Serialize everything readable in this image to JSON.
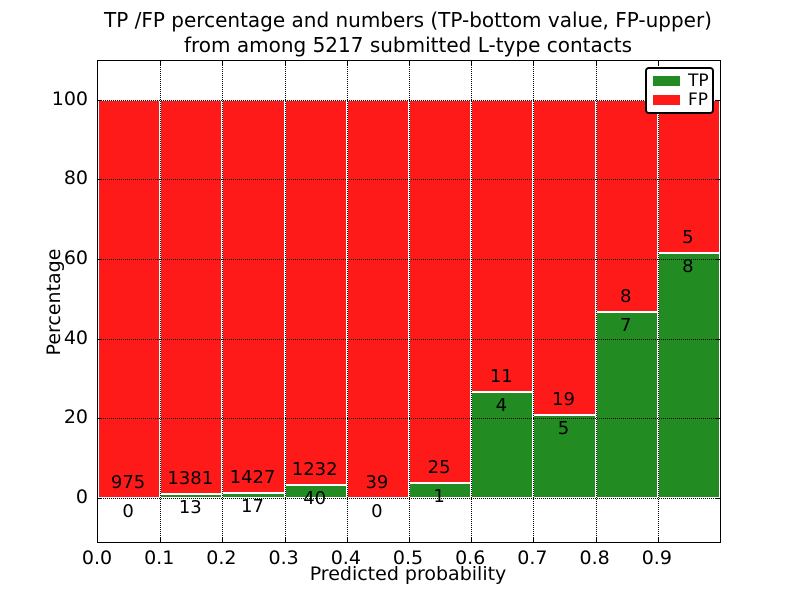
{
  "figure": {
    "title_line1": "TP /FP percentage and numbers (TP-bottom value, FP-upper)",
    "title_line2": "from among 5217 submitted L-type contacts",
    "xlabel": "Predicted probability",
    "ylabel": "Percentage"
  },
  "chart_data": {
    "type": "bar",
    "stacked": true,
    "normalized": "each bin scaled to 100%",
    "title": "TP /FP percentage and numbers (TP-bottom value, FP-upper)\nfrom among 5217 submitted L-type contacts",
    "xlabel": "Predicted probability",
    "ylabel": "Percentage",
    "total_contacts": 5217,
    "bin_width": 0.1,
    "categories": [
      "0.0",
      "0.1",
      "0.2",
      "0.3",
      "0.4",
      "0.5",
      "0.6",
      "0.7",
      "0.8",
      "0.9"
    ],
    "series": [
      {
        "name": "TP",
        "color": "#228B22",
        "counts": [
          0,
          13,
          17,
          40,
          0,
          1,
          4,
          5,
          7,
          8
        ]
      },
      {
        "name": "FP",
        "color": "#ff1a1a",
        "counts": [
          975,
          1381,
          1427,
          1232,
          39,
          25,
          11,
          19,
          8,
          5
        ]
      }
    ],
    "tp_percent": [
      0,
      0.93,
      1.18,
      3.14,
      0,
      3.85,
      26.67,
      20.83,
      46.67,
      61.54
    ],
    "xticks": [
      "0.0",
      "0.1",
      "0.2",
      "0.3",
      "0.4",
      "0.5",
      "0.6",
      "0.7",
      "0.8",
      "0.9"
    ],
    "yticks": [
      0,
      20,
      40,
      60,
      80,
      100
    ],
    "ylim": [
      0,
      100
    ],
    "grid": "dotted black, both axes",
    "legend_position": "upper right",
    "legend": [
      {
        "label": "TP",
        "color": "#228B22"
      },
      {
        "label": "FP",
        "color": "#ff1a1a"
      }
    ],
    "bar_edge_color": "#ffffff",
    "annotation_scheme": "TP count below segment boundary, FP count above it"
  }
}
